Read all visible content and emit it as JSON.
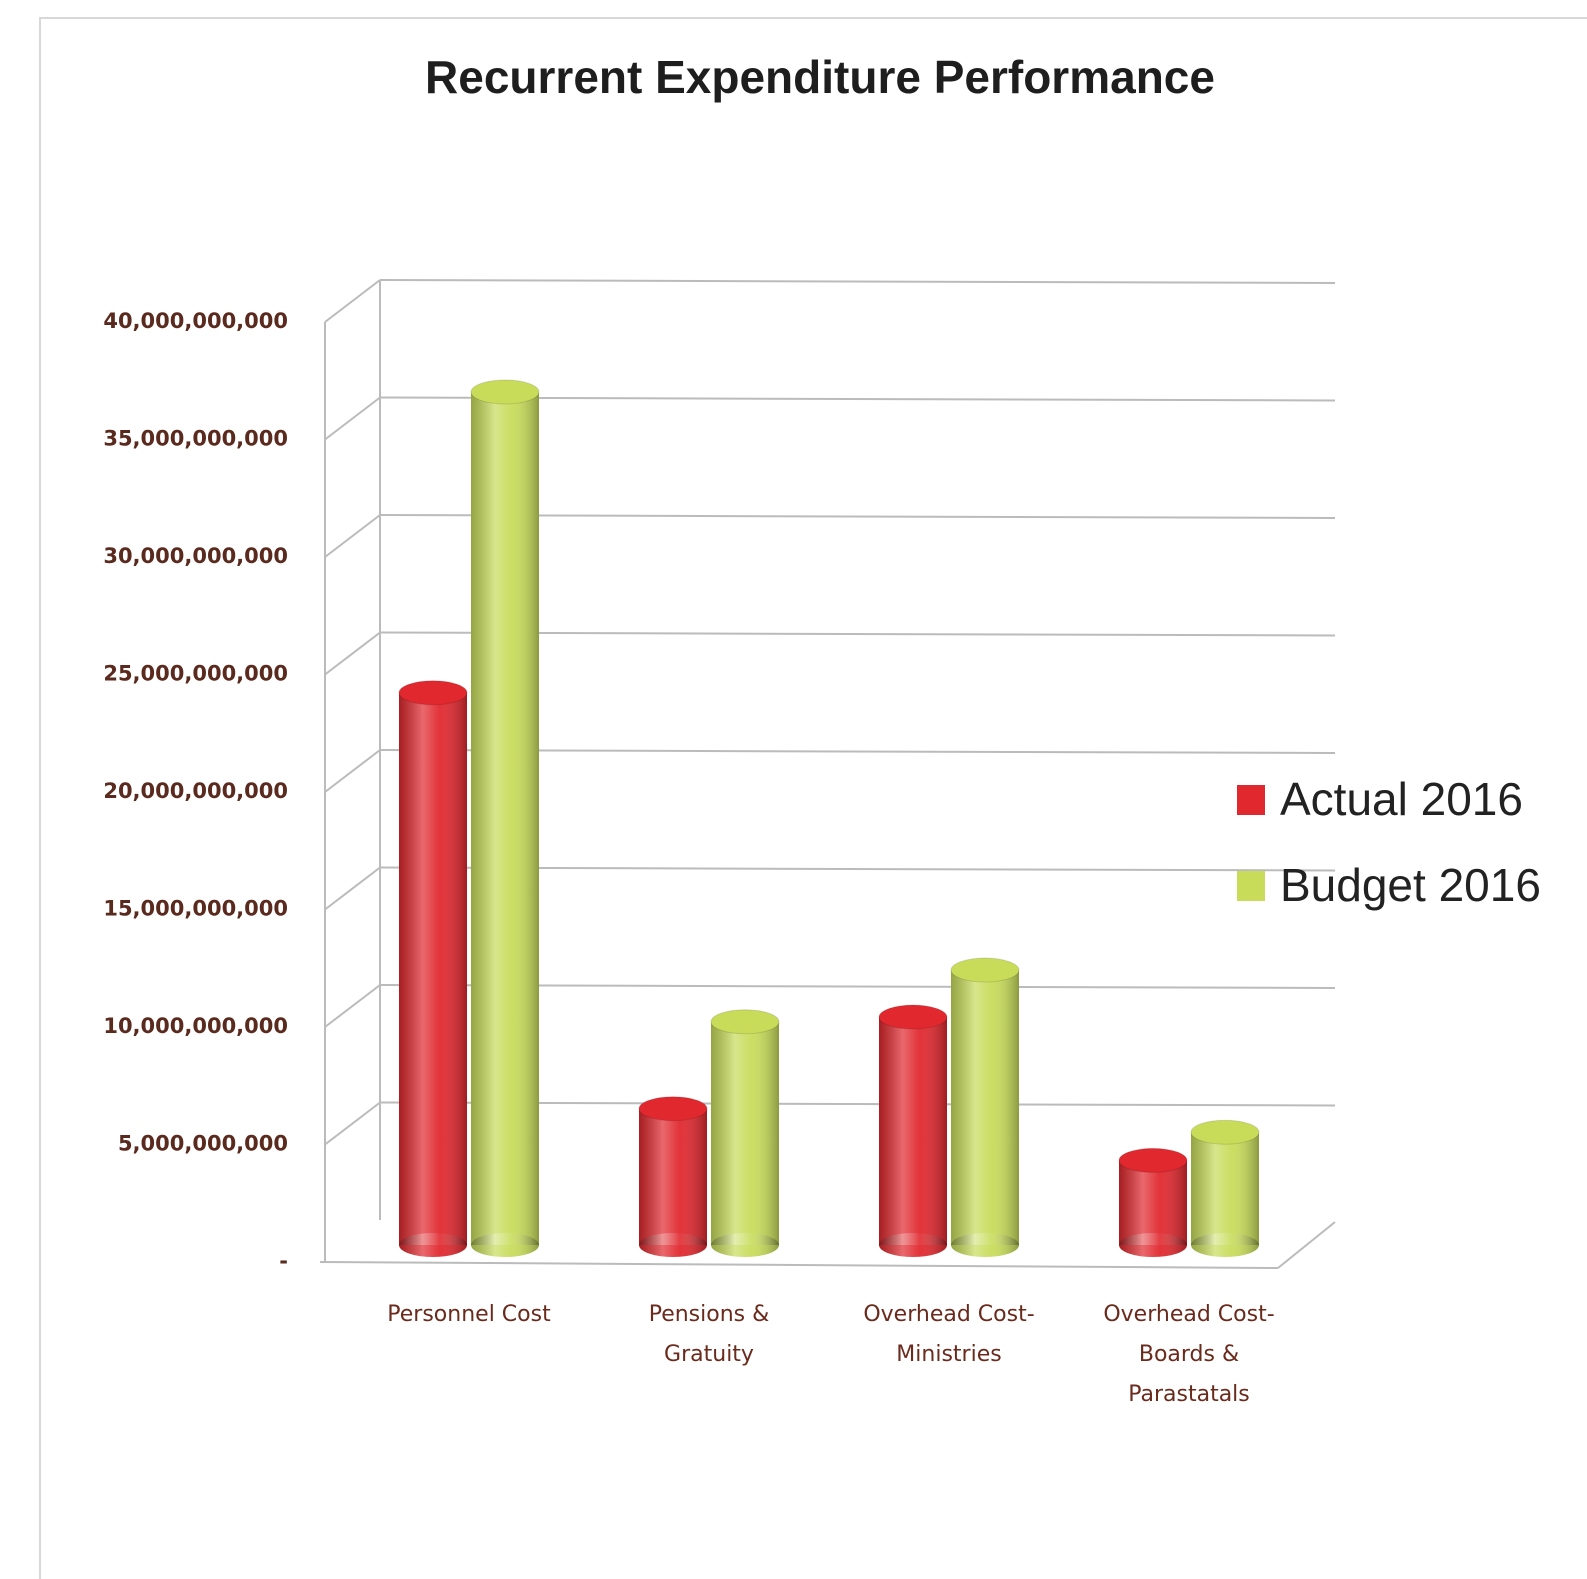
{
  "chart_data": {
    "type": "bar3d",
    "title": "Recurrent Expenditure Performance",
    "categories": [
      "Personnel Cost",
      "Pensions & Gratuity",
      "Overhead Cost-Ministries",
      "Overhead Cost- Boards & Parastatals"
    ],
    "series": [
      {
        "name": "Actual 2016",
        "color": "#e0282e",
        "values": [
          23500000000,
          5800000000,
          9700000000,
          3600000000
        ]
      },
      {
        "name": "Budget 2016",
        "color": "#c8dc5a",
        "values": [
          36300000000,
          9500000000,
          11700000000,
          4800000000
        ]
      }
    ],
    "ylim": [
      0,
      40000000000
    ],
    "yticks": [
      {
        "value": 0,
        "label": "-"
      },
      {
        "value": 5000000000,
        "label": "5,000,000,000"
      },
      {
        "value": 10000000000,
        "label": "10,000,000,000"
      },
      {
        "value": 15000000000,
        "label": "15,000,000,000"
      },
      {
        "value": 20000000000,
        "label": "20,000,000,000"
      },
      {
        "value": 25000000000,
        "label": "25,000,000,000"
      },
      {
        "value": 30000000000,
        "label": "30,000,000,000"
      },
      {
        "value": 35000000000,
        "label": "35,000,000,000"
      },
      {
        "value": 40000000000,
        "label": "40,000,000,000"
      }
    ],
    "grid": true,
    "legend": "right"
  }
}
